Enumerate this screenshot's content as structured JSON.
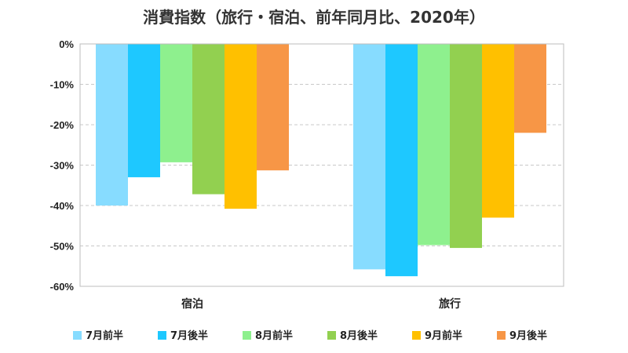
{
  "chart_data": {
    "type": "bar",
    "title": "消費指数（旅行・宿泊、前年同月比、2020年）",
    "xlabel": "",
    "ylabel": "",
    "categories": [
      "宿泊",
      "旅行"
    ],
    "ylim": [
      -60,
      0
    ],
    "yticks": [
      0,
      -10,
      -20,
      -30,
      -40,
      -50,
      -60
    ],
    "ytick_labels": [
      "0%",
      "-10%",
      "-20%",
      "-30%",
      "-40%",
      "-50%",
      "-60%"
    ],
    "grid": true,
    "legend_position": "bottom",
    "series": [
      {
        "name": "7月前半",
        "color": "#87DCFF",
        "values": [
          -40.0,
          -55.8
        ]
      },
      {
        "name": "7月後半",
        "color": "#1EC8FF",
        "values": [
          -33.0,
          -57.5
        ]
      },
      {
        "name": "8月前半",
        "color": "#8EF08E",
        "values": [
          -29.3,
          -49.8
        ]
      },
      {
        "name": "8月後半",
        "color": "#92D050",
        "values": [
          -37.2,
          -50.5
        ]
      },
      {
        "name": "9月前半",
        "color": "#FFC000",
        "values": [
          -40.8,
          -43.0
        ]
      },
      {
        "name": "9月後半",
        "color": "#F79646",
        "values": [
          -31.3,
          -22.0
        ]
      }
    ]
  }
}
